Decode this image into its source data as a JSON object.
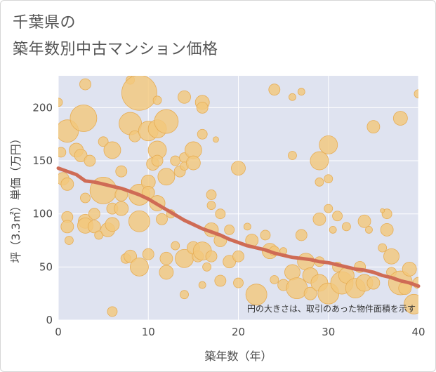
{
  "title_line1": "千葉県の",
  "title_line2": "築年数別中古マンション価格",
  "colors": {
    "plot_bg": "#dfe3f0",
    "grid": "#ffffff",
    "bubble_fill": "#f3c87d",
    "bubble_stroke": "#e6ad55",
    "trend_line": "#cf6b55"
  },
  "chart_data": {
    "type": "scatter",
    "xlabel": "築年数（年）",
    "ylabel": "坪（3.3㎡）単価（万円）",
    "xlim": [
      0,
      40
    ],
    "ylim": [
      0,
      230
    ],
    "xticks": [
      "0",
      "10",
      "20",
      "30",
      "40"
    ],
    "yticks": [
      "0",
      "50",
      "100",
      "150",
      "200"
    ],
    "note": "円の大きさは、取引のあった物件面積を示す",
    "trend": {
      "x": [
        0,
        1,
        2,
        3,
        4,
        5,
        6,
        7,
        8,
        9,
        10,
        11,
        12,
        13,
        14,
        15,
        16,
        17,
        18,
        19,
        20,
        21,
        22,
        23,
        24,
        25,
        26,
        27,
        28,
        29,
        30,
        31,
        32,
        33,
        34,
        35,
        36,
        37,
        38,
        39,
        40
      ],
      "y": [
        143,
        140,
        137,
        131,
        130,
        128,
        126,
        124,
        121,
        118,
        114,
        109,
        104,
        99,
        94,
        90,
        86,
        83,
        80,
        76,
        73,
        70,
        68,
        66,
        63,
        61,
        59,
        58,
        57,
        55,
        54,
        52,
        50,
        48,
        47,
        45,
        42,
        40,
        37,
        35,
        32
      ]
    },
    "points": [
      {
        "x": 0.0,
        "y": 205,
        "s": 6
      },
      {
        "x": 0.3,
        "y": 158,
        "s": 7
      },
      {
        "x": 0.5,
        "y": 133,
        "s": 9
      },
      {
        "x": 1.0,
        "y": 178,
        "s": 16
      },
      {
        "x": 1.0,
        "y": 128,
        "s": 9
      },
      {
        "x": 1.0,
        "y": 97,
        "s": 8
      },
      {
        "x": 1.0,
        "y": 88,
        "s": 9
      },
      {
        "x": 1.2,
        "y": 75,
        "s": 6
      },
      {
        "x": 2.0,
        "y": 160,
        "s": 10
      },
      {
        "x": 2.5,
        "y": 155,
        "s": 9
      },
      {
        "x": 2.8,
        "y": 190,
        "s": 19
      },
      {
        "x": 3.0,
        "y": 222,
        "s": 8
      },
      {
        "x": 3.0,
        "y": 115,
        "s": 7
      },
      {
        "x": 3.0,
        "y": 93,
        "s": 10
      },
      {
        "x": 3.0,
        "y": 89,
        "s": 11
      },
      {
        "x": 3.5,
        "y": 150,
        "s": 8
      },
      {
        "x": 4.0,
        "y": 100,
        "s": 8
      },
      {
        "x": 4.0,
        "y": 88,
        "s": 9
      },
      {
        "x": 4.5,
        "y": 80,
        "s": 6
      },
      {
        "x": 5.0,
        "y": 168,
        "s": 7
      },
      {
        "x": 5.0,
        "y": 122,
        "s": 19
      },
      {
        "x": 5.5,
        "y": 85,
        "s": 10
      },
      {
        "x": 6.0,
        "y": 160,
        "s": 12
      },
      {
        "x": 6.0,
        "y": 105,
        "s": 8
      },
      {
        "x": 6.0,
        "y": 90,
        "s": 10
      },
      {
        "x": 6.0,
        "y": 8,
        "s": 7
      },
      {
        "x": 7.0,
        "y": 140,
        "s": 8
      },
      {
        "x": 7.0,
        "y": 118,
        "s": 9
      },
      {
        "x": 7.0,
        "y": 105,
        "s": 10
      },
      {
        "x": 7.5,
        "y": 58,
        "s": 7
      },
      {
        "x": 8.0,
        "y": 185,
        "s": 16
      },
      {
        "x": 8.0,
        "y": 60,
        "s": 9
      },
      {
        "x": 8.0,
        "y": 226,
        "s": 6
      },
      {
        "x": 8.5,
        "y": 173,
        "s": 8
      },
      {
        "x": 9.0,
        "y": 214,
        "s": 25
      },
      {
        "x": 9.0,
        "y": 118,
        "s": 15
      },
      {
        "x": 9.0,
        "y": 93,
        "s": 15
      },
      {
        "x": 9.0,
        "y": 50,
        "s": 13
      },
      {
        "x": 10.0,
        "y": 178,
        "s": 14
      },
      {
        "x": 10.0,
        "y": 130,
        "s": 10
      },
      {
        "x": 10.0,
        "y": 120,
        "s": 9
      },
      {
        "x": 10.0,
        "y": 62,
        "s": 8
      },
      {
        "x": 10.5,
        "y": 147,
        "s": 9
      },
      {
        "x": 11.0,
        "y": 207,
        "s": 6
      },
      {
        "x": 11.0,
        "y": 180,
        "s": 13
      },
      {
        "x": 11.0,
        "y": 160,
        "s": 13
      },
      {
        "x": 11.0,
        "y": 150,
        "s": 8
      },
      {
        "x": 11.0,
        "y": 110,
        "s": 11
      },
      {
        "x": 11.5,
        "y": 95,
        "s": 8
      },
      {
        "x": 12.0,
        "y": 187,
        "s": 17
      },
      {
        "x": 12.0,
        "y": 135,
        "s": 12
      },
      {
        "x": 12.0,
        "y": 58,
        "s": 9
      },
      {
        "x": 12.0,
        "y": 45,
        "s": 10
      },
      {
        "x": 12.5,
        "y": 100,
        "s": 6
      },
      {
        "x": 13.0,
        "y": 150,
        "s": 7
      },
      {
        "x": 13.0,
        "y": 70,
        "s": 6
      },
      {
        "x": 13.5,
        "y": 140,
        "s": 8
      },
      {
        "x": 14.0,
        "y": 210,
        "s": 9
      },
      {
        "x": 14.0,
        "y": 153,
        "s": 7
      },
      {
        "x": 14.0,
        "y": 145,
        "s": 6
      },
      {
        "x": 14.0,
        "y": 58,
        "s": 13
      },
      {
        "x": 14.0,
        "y": 24,
        "s": 6
      },
      {
        "x": 15.0,
        "y": 160,
        "s": 12
      },
      {
        "x": 15.0,
        "y": 148,
        "s": 10
      },
      {
        "x": 15.0,
        "y": 68,
        "s": 9
      },
      {
        "x": 15.5,
        "y": 60,
        "s": 8
      },
      {
        "x": 16.0,
        "y": 205,
        "s": 10
      },
      {
        "x": 16.0,
        "y": 200,
        "s": 8
      },
      {
        "x": 16.0,
        "y": 175,
        "s": 7
      },
      {
        "x": 16.0,
        "y": 65,
        "s": 13
      },
      {
        "x": 16.0,
        "y": 33,
        "s": 5
      },
      {
        "x": 16.5,
        "y": 50,
        "s": 6
      },
      {
        "x": 17.0,
        "y": 118,
        "s": 7
      },
      {
        "x": 17.0,
        "y": 108,
        "s": 6
      },
      {
        "x": 17.0,
        "y": 85,
        "s": 10
      },
      {
        "x": 17.0,
        "y": 60,
        "s": 8
      },
      {
        "x": 17.5,
        "y": 170,
        "s": 4
      },
      {
        "x": 18.0,
        "y": 100,
        "s": 7
      },
      {
        "x": 18.0,
        "y": 75,
        "s": 9
      },
      {
        "x": 18.0,
        "y": 37,
        "s": 8
      },
      {
        "x": 19.0,
        "y": 85,
        "s": 7
      },
      {
        "x": 19.0,
        "y": 55,
        "s": 9
      },
      {
        "x": 20.0,
        "y": 143,
        "s": 10
      },
      {
        "x": 20.0,
        "y": 60,
        "s": 8
      },
      {
        "x": 20.0,
        "y": 35,
        "s": 7
      },
      {
        "x": 21.0,
        "y": 88,
        "s": 5
      },
      {
        "x": 21.5,
        "y": 75,
        "s": 9
      },
      {
        "x": 22.0,
        "y": 24,
        "s": 15
      },
      {
        "x": 23.0,
        "y": 80,
        "s": 7
      },
      {
        "x": 23.5,
        "y": 65,
        "s": 11
      },
      {
        "x": 24.0,
        "y": 217,
        "s": 8
      },
      {
        "x": 24.0,
        "y": 65,
        "s": 7
      },
      {
        "x": 24.0,
        "y": 38,
        "s": 6
      },
      {
        "x": 25.0,
        "y": 33,
        "s": 8
      },
      {
        "x": 25.0,
        "y": 65,
        "s": 5
      },
      {
        "x": 26.0,
        "y": 210,
        "s": 5
      },
      {
        "x": 26.0,
        "y": 155,
        "s": 6
      },
      {
        "x": 26.0,
        "y": 45,
        "s": 11
      },
      {
        "x": 26.5,
        "y": 30,
        "s": 15
      },
      {
        "x": 27.0,
        "y": 215,
        "s": 5
      },
      {
        "x": 27.0,
        "y": 80,
        "s": 8
      },
      {
        "x": 27.5,
        "y": 55,
        "s": 12
      },
      {
        "x": 28.0,
        "y": 42,
        "s": 11
      },
      {
        "x": 28.0,
        "y": 25,
        "s": 9
      },
      {
        "x": 29.0,
        "y": 150,
        "s": 13
      },
      {
        "x": 29.0,
        "y": 130,
        "s": 6
      },
      {
        "x": 29.0,
        "y": 95,
        "s": 9
      },
      {
        "x": 29.0,
        "y": 55,
        "s": 7
      },
      {
        "x": 29.0,
        "y": 35,
        "s": 12
      },
      {
        "x": 30.0,
        "y": 165,
        "s": 13
      },
      {
        "x": 30.0,
        "y": 133,
        "s": 6
      },
      {
        "x": 30.0,
        "y": 105,
        "s": 6
      },
      {
        "x": 30.0,
        "y": 25,
        "s": 15
      },
      {
        "x": 30.5,
        "y": 85,
        "s": 5
      },
      {
        "x": 31.0,
        "y": 98,
        "s": 7
      },
      {
        "x": 31.0,
        "y": 50,
        "s": 7
      },
      {
        "x": 31.5,
        "y": 35,
        "s": 16
      },
      {
        "x": 32.0,
        "y": 88,
        "s": 6
      },
      {
        "x": 32.0,
        "y": 42,
        "s": 11
      },
      {
        "x": 33.0,
        "y": 30,
        "s": 14
      },
      {
        "x": 33.5,
        "y": 50,
        "s": 8
      },
      {
        "x": 34.0,
        "y": 93,
        "s": 9
      },
      {
        "x": 34.0,
        "y": 35,
        "s": 12
      },
      {
        "x": 34.5,
        "y": 85,
        "s": 5
      },
      {
        "x": 35.0,
        "y": 182,
        "s": 9
      },
      {
        "x": 35.0,
        "y": 35,
        "s": 9
      },
      {
        "x": 36.0,
        "y": 68,
        "s": 6
      },
      {
        "x": 36.5,
        "y": 85,
        "s": 9
      },
      {
        "x": 36.5,
        "y": 100,
        "s": 7
      },
      {
        "x": 37.0,
        "y": 60,
        "s": 11
      },
      {
        "x": 37.0,
        "y": 45,
        "s": 7
      },
      {
        "x": 38.0,
        "y": 190,
        "s": 10
      },
      {
        "x": 38.0,
        "y": 35,
        "s": 17
      },
      {
        "x": 38.5,
        "y": 30,
        "s": 9
      },
      {
        "x": 39.0,
        "y": 48,
        "s": 10
      },
      {
        "x": 39.5,
        "y": 15,
        "s": 14
      },
      {
        "x": 40.0,
        "y": 213,
        "s": 6
      },
      {
        "x": 40.0,
        "y": 35,
        "s": 8
      },
      {
        "x": 36.0,
        "y": 103,
        "s": 3
      }
    ]
  }
}
